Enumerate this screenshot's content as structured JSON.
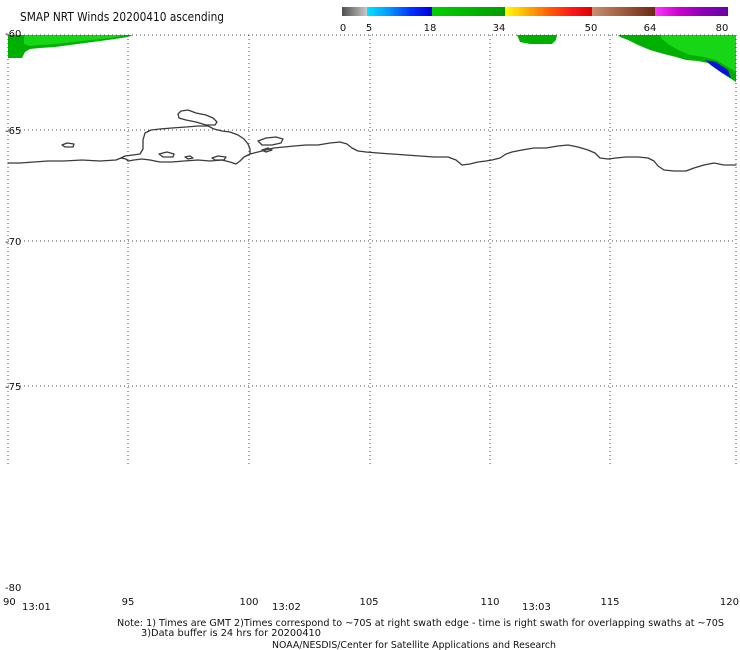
{
  "title": "SMAP NRT Winds 20200410 ascending",
  "colorbar": {
    "ticks": [
      "0",
      "5",
      "18",
      "34",
      "50",
      "64",
      "80"
    ],
    "segments": [
      [
        "#4f4f4f",
        "#8c8c8c",
        "#c8c8c8"
      ],
      [
        "#00e5ff",
        "#0099ff",
        "#0033ff",
        "#0000dd"
      ],
      [
        "#00d000",
        "#00b800",
        "#009a00"
      ],
      [
        "#ffff00",
        "#ffb000",
        "#ff6000",
        "#ff1a1a",
        "#e00000"
      ],
      [
        "#c89070",
        "#a05a3a",
        "#6a2814"
      ],
      [
        "#ff33ff",
        "#cc00cc",
        "#8a00b8",
        "#6a00a0"
      ]
    ]
  },
  "map": {
    "lat_labels": [
      "-60",
      "-65",
      "-70",
      "-75",
      "-80"
    ],
    "lon_labels": [
      "90",
      "95",
      "100",
      "105",
      "110",
      "115",
      "120"
    ],
    "time_labels": [
      "13:01",
      "13:02",
      "13:03"
    ],
    "swath_colors": {
      "green_dark": "#00b000",
      "green_light": "#16d616",
      "blue": "#0a14d2"
    },
    "coastline_color": "#3a3a3a"
  },
  "notes": [
    "Note: 1) Times are GMT 2)Times correspond to ~70S at right swath edge - time is right swath for overlapping swaths at ~70S",
    "3)Data buffer is 24 hrs for 20200410",
    "NOAA/NESDIS/Center for Satellite Applications and Research"
  ]
}
